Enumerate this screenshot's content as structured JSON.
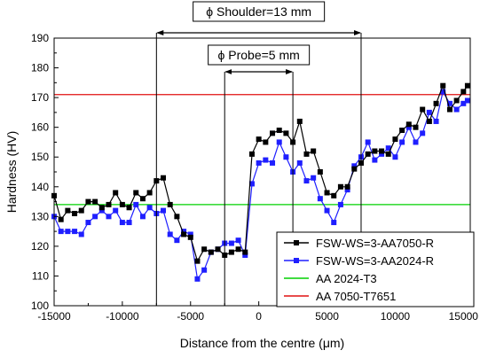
{
  "chart_data": {
    "type": "line",
    "xlabel": "Distance from the centre (μm)",
    "ylabel": "Hardness (HV)",
    "xlim": [
      -15000,
      15500
    ],
    "ylim": [
      100,
      190
    ],
    "x_ticks": [
      -15000,
      -10000,
      -5000,
      0,
      5000,
      10000,
      15000
    ],
    "y_ticks": [
      100,
      110,
      120,
      130,
      140,
      150,
      160,
      170,
      180,
      190
    ],
    "x_tick_labels": [
      "-15000",
      "-10000",
      "-5000",
      "0",
      "5000",
      "10000",
      "15000"
    ],
    "y_tick_labels": [
      "100",
      "110",
      "120",
      "130",
      "140",
      "150",
      "160",
      "170",
      "180",
      "190"
    ],
    "series": [
      {
        "name": "FSW-WS=3-AA7050-R",
        "color": "#000000",
        "marker": "square",
        "x": [
          -15000,
          -14500,
          -14000,
          -13500,
          -13000,
          -12500,
          -12000,
          -11500,
          -11000,
          -10500,
          -10000,
          -9500,
          -9000,
          -8500,
          -8000,
          -7500,
          -7000,
          -6500,
          -6000,
          -5500,
          -5000,
          -4500,
          -4000,
          -3500,
          -3000,
          -2500,
          -2000,
          -1500,
          -1000,
          -500,
          0,
          500,
          1000,
          1500,
          2000,
          2500,
          3000,
          3500,
          4000,
          4500,
          5000,
          5500,
          6000,
          6500,
          7000,
          7500,
          8000,
          8500,
          9000,
          9500,
          10000,
          10500,
          11000,
          11500,
          12000,
          12500,
          13000,
          13500,
          14000,
          14500,
          15000,
          15300
        ],
        "values": [
          137,
          129,
          132,
          131,
          132,
          135,
          135,
          133,
          134,
          138,
          134,
          133,
          138,
          136,
          138,
          142,
          143,
          134,
          130,
          124,
          123,
          115,
          119,
          118,
          119,
          117,
          118,
          119,
          118,
          151,
          156,
          155,
          158,
          159,
          158,
          155,
          162,
          151,
          152,
          145,
          138,
          137,
          140,
          140,
          146,
          148,
          151,
          152,
          152,
          151,
          156,
          159,
          161,
          160,
          166,
          162,
          168,
          174,
          166,
          169,
          172,
          174
        ]
      },
      {
        "name": "FSW-WS=3-AA2024-R",
        "color": "#1f1fff",
        "marker": "square",
        "x": [
          -15000,
          -14500,
          -14000,
          -13500,
          -13000,
          -12500,
          -12000,
          -11500,
          -11000,
          -10500,
          -10000,
          -9500,
          -9000,
          -8500,
          -8000,
          -7500,
          -7000,
          -6500,
          -6000,
          -5500,
          -5000,
          -4500,
          -4000,
          -3500,
          -3000,
          -2500,
          -2000,
          -1500,
          -1000,
          -500,
          0,
          500,
          1000,
          1500,
          2000,
          2500,
          3000,
          3500,
          4000,
          4500,
          5000,
          5500,
          6000,
          6500,
          7000,
          7500,
          8000,
          8500,
          9000,
          9500,
          10000,
          10500,
          11000,
          11500,
          12000,
          12500,
          13000,
          13500,
          14000,
          14500,
          15000,
          15300
        ],
        "values": [
          130,
          125,
          125,
          125,
          124,
          128,
          130,
          132,
          130,
          132,
          128,
          128,
          134,
          130,
          133,
          131,
          132,
          124,
          122,
          125,
          124,
          109,
          112,
          118,
          119,
          121,
          121,
          122,
          117,
          141,
          148,
          149,
          148,
          155,
          150,
          145,
          148,
          142,
          143,
          136,
          132,
          128,
          134,
          139,
          147,
          150,
          155,
          149,
          151,
          153,
          150,
          155,
          160,
          155,
          158,
          165,
          162,
          172,
          168,
          166,
          168,
          169
        ]
      },
      {
        "name": "AA 2024-T3",
        "color": "#00d000",
        "type": "hline",
        "value": 134
      },
      {
        "name": "AA 7050-T7651",
        "color": "#e01010",
        "type": "hline",
        "value": 171
      }
    ],
    "annotations": [
      {
        "label": "ϕ Shoulder=13 mm",
        "from": -7500,
        "to": 7500
      },
      {
        "label": "ϕ Probe=5 mm",
        "from": -2500,
        "to": 2500
      }
    ],
    "legend_position": "bottom-right",
    "grid": false
  }
}
